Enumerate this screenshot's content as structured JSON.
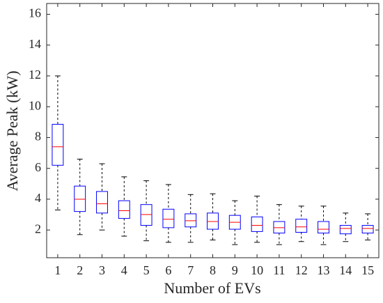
{
  "chart_data": {
    "type": "box",
    "x_label": "Number of EVs",
    "y_label": "Average Peak (kW)",
    "categories": [
      "1",
      "2",
      "3",
      "4",
      "5",
      "6",
      "7",
      "8",
      "9",
      "10",
      "11",
      "12",
      "13",
      "14",
      "15"
    ],
    "boxes": [
      {
        "min": 3.3,
        "q1": 6.2,
        "median": 7.4,
        "q3": 8.86,
        "max": 12.0
      },
      {
        "min": 1.7,
        "q1": 3.2,
        "median": 4.0,
        "q3": 4.85,
        "max": 6.6
      },
      {
        "min": 2.0,
        "q1": 3.1,
        "median": 3.7,
        "q3": 4.5,
        "max": 6.3
      },
      {
        "min": 1.6,
        "q1": 2.75,
        "median": 3.25,
        "q3": 3.9,
        "max": 5.45
      },
      {
        "min": 1.3,
        "q1": 2.3,
        "median": 3.0,
        "q3": 3.65,
        "max": 5.2
      },
      {
        "min": 1.2,
        "q1": 2.15,
        "median": 2.7,
        "q3": 3.35,
        "max": 4.95
      },
      {
        "min": 1.2,
        "q1": 2.2,
        "median": 2.6,
        "q3": 3.05,
        "max": 4.3
      },
      {
        "min": 1.35,
        "q1": 2.05,
        "median": 2.55,
        "q3": 3.1,
        "max": 4.35
      },
      {
        "min": 1.05,
        "q1": 2.05,
        "median": 2.5,
        "q3": 2.95,
        "max": 3.9
      },
      {
        "min": 1.2,
        "q1": 1.9,
        "median": 2.3,
        "q3": 2.85,
        "max": 4.2
      },
      {
        "min": 1.05,
        "q1": 1.8,
        "median": 2.15,
        "q3": 2.55,
        "max": 3.65
      },
      {
        "min": 1.25,
        "q1": 1.85,
        "median": 2.2,
        "q3": 2.7,
        "max": 3.55
      },
      {
        "min": 1.05,
        "q1": 1.8,
        "median": 2.05,
        "q3": 2.55,
        "max": 3.55
      },
      {
        "min": 1.25,
        "q1": 1.75,
        "median": 2.1,
        "q3": 2.3,
        "max": 3.1
      },
      {
        "min": 1.35,
        "q1": 1.8,
        "median": 2.1,
        "q3": 2.3,
        "max": 3.05
      }
    ],
    "box_color": "#0000ff",
    "median_color": "#ff0000",
    "whisker_color": "#000000",
    "ylim": [
      0.2,
      16.7
    ],
    "yticks": [
      2,
      4,
      6,
      8,
      10,
      12,
      14,
      16
    ]
  }
}
